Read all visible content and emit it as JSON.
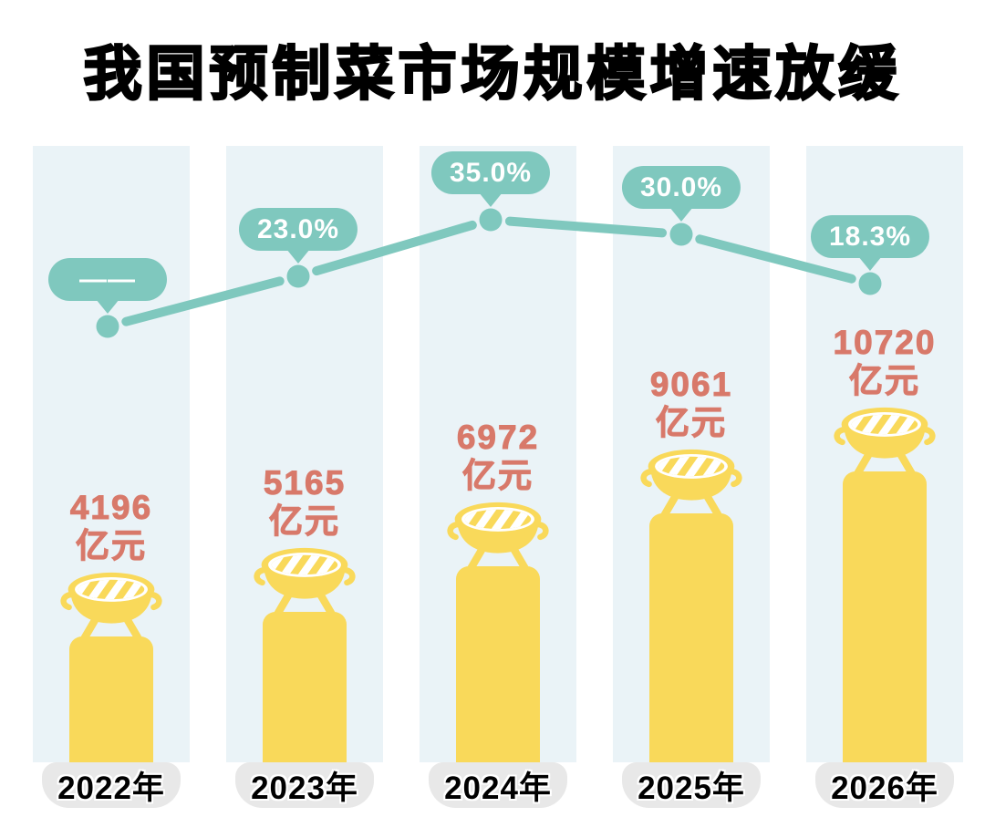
{
  "title": "我国预制菜市场规模增速放缓",
  "colors": {
    "teal": "#7FC8BE",
    "yellow": "#F9D95A",
    "column_band": "#EAF3F7",
    "coral": "#D8796A",
    "pill_gray": "#E8E8E8",
    "title_black": "#000000",
    "bubble_text": "#FFFFFF"
  },
  "chart_data": {
    "type": "bar",
    "title": "我国预制菜市场规模增速放缓",
    "categories": [
      "2022年",
      "2023年",
      "2024年",
      "2025年",
      "2026年"
    ],
    "series": [
      {
        "name": "市场规模",
        "type": "bar",
        "unit": "亿元",
        "values": [
          4196,
          5165,
          6972,
          9061,
          10720
        ]
      },
      {
        "name": "增速",
        "type": "line",
        "unit": "%",
        "values": [
          null,
          23.0,
          35.0,
          30.0,
          18.3
        ],
        "labels": [
          "——",
          "23.0%",
          "35.0%",
          "30.0%",
          "18.3%"
        ]
      }
    ],
    "value_labels": [
      [
        "4196",
        "亿元"
      ],
      [
        "5165",
        "亿元"
      ],
      [
        "6972",
        "亿元"
      ],
      [
        "9061",
        "亿元"
      ],
      [
        "10720",
        "亿元"
      ]
    ],
    "legend": "none",
    "grid": false
  }
}
